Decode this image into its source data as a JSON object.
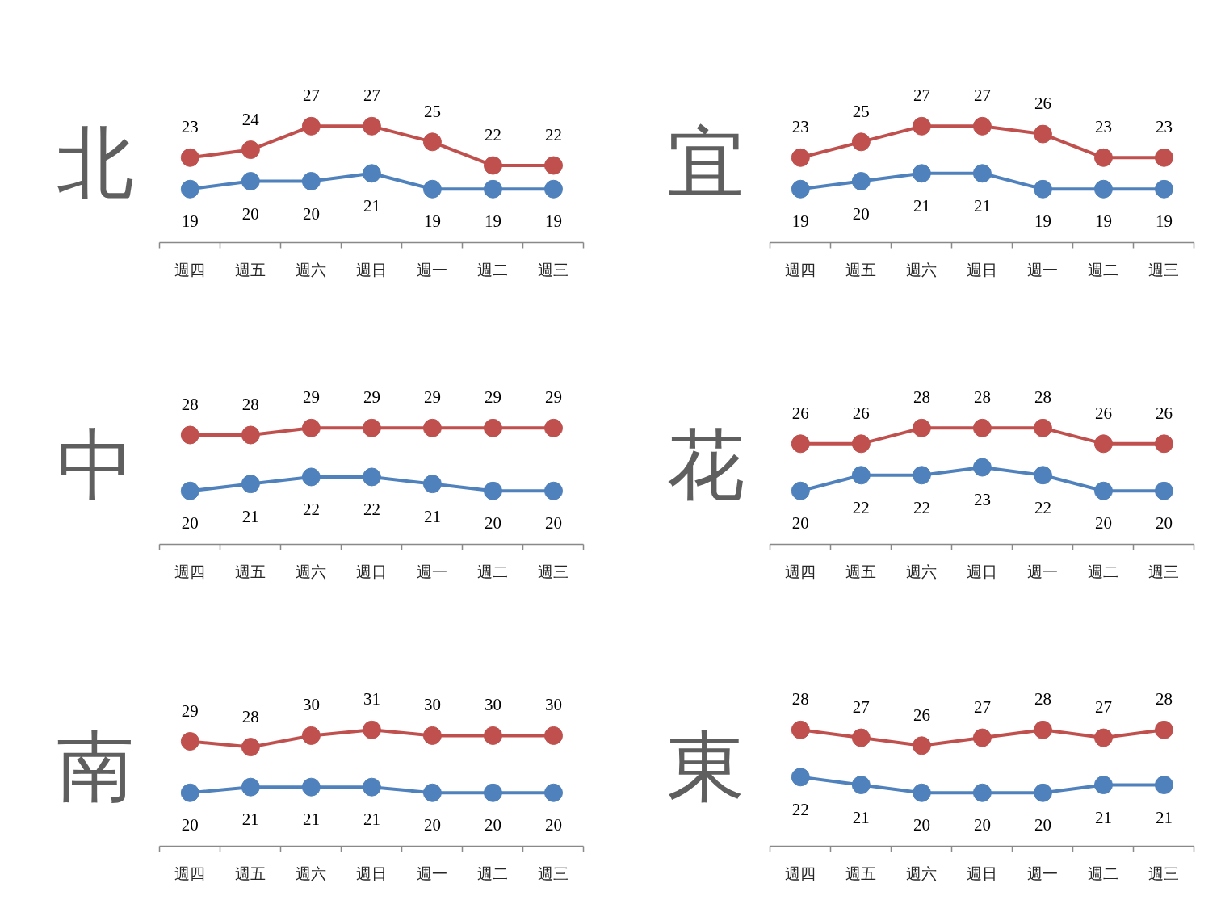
{
  "chart_data": [
    {
      "type": "line",
      "title": "北",
      "categories": [
        "週四",
        "週五",
        "週六",
        "週日",
        "週一",
        "週二",
        "週三"
      ],
      "series": [
        {
          "color": "#c0504d",
          "values": [
            23,
            24,
            27,
            27,
            25,
            22,
            22
          ]
        },
        {
          "color": "#4f81bd",
          "values": [
            19,
            20,
            20,
            21,
            19,
            19,
            19
          ]
        }
      ],
      "marker": "circle",
      "data_labels": true,
      "tick_labels": "x"
    },
    {
      "type": "line",
      "title": "宜",
      "categories": [
        "週四",
        "週五",
        "週六",
        "週日",
        "週一",
        "週二",
        "週三"
      ],
      "series": [
        {
          "color": "#c0504d",
          "values": [
            23,
            25,
            27,
            27,
            26,
            23,
            23
          ]
        },
        {
          "color": "#4f81bd",
          "values": [
            19,
            20,
            21,
            21,
            19,
            19,
            19
          ]
        }
      ],
      "marker": "circle",
      "data_labels": true,
      "tick_labels": "x"
    },
    {
      "type": "line",
      "title": "中",
      "categories": [
        "週四",
        "週五",
        "週六",
        "週日",
        "週一",
        "週二",
        "週三"
      ],
      "series": [
        {
          "color": "#c0504d",
          "values": [
            28,
            28,
            29,
            29,
            29,
            29,
            29
          ]
        },
        {
          "color": "#4f81bd",
          "values": [
            20,
            21,
            22,
            22,
            21,
            20,
            20
          ]
        }
      ],
      "marker": "circle",
      "data_labels": true,
      "tick_labels": "x"
    },
    {
      "type": "line",
      "title": "花",
      "categories": [
        "週四",
        "週五",
        "週六",
        "週日",
        "週一",
        "週二",
        "週三"
      ],
      "series": [
        {
          "color": "#c0504d",
          "values": [
            26,
            26,
            28,
            28,
            28,
            26,
            26
          ]
        },
        {
          "color": "#4f81bd",
          "values": [
            20,
            22,
            22,
            23,
            22,
            20,
            20
          ]
        }
      ],
      "marker": "circle",
      "data_labels": true,
      "tick_labels": "x"
    },
    {
      "type": "line",
      "title": "南",
      "categories": [
        "週四",
        "週五",
        "週六",
        "週日",
        "週一",
        "週二",
        "週三"
      ],
      "series": [
        {
          "color": "#c0504d",
          "values": [
            29,
            28,
            30,
            31,
            30,
            30,
            30
          ]
        },
        {
          "color": "#4f81bd",
          "values": [
            20,
            21,
            21,
            21,
            20,
            20,
            20
          ]
        }
      ],
      "marker": "circle",
      "data_labels": true,
      "tick_labels": "x"
    },
    {
      "type": "line",
      "title": "東",
      "categories": [
        "週四",
        "週五",
        "週六",
        "週日",
        "週一",
        "週二",
        "週三"
      ],
      "series": [
        {
          "color": "#c0504d",
          "values": [
            28,
            27,
            26,
            27,
            28,
            27,
            28
          ]
        },
        {
          "color": "#4f81bd",
          "values": [
            22,
            21,
            20,
            20,
            20,
            21,
            21
          ]
        }
      ],
      "marker": "circle",
      "data_labels": true,
      "tick_labels": "x"
    }
  ]
}
